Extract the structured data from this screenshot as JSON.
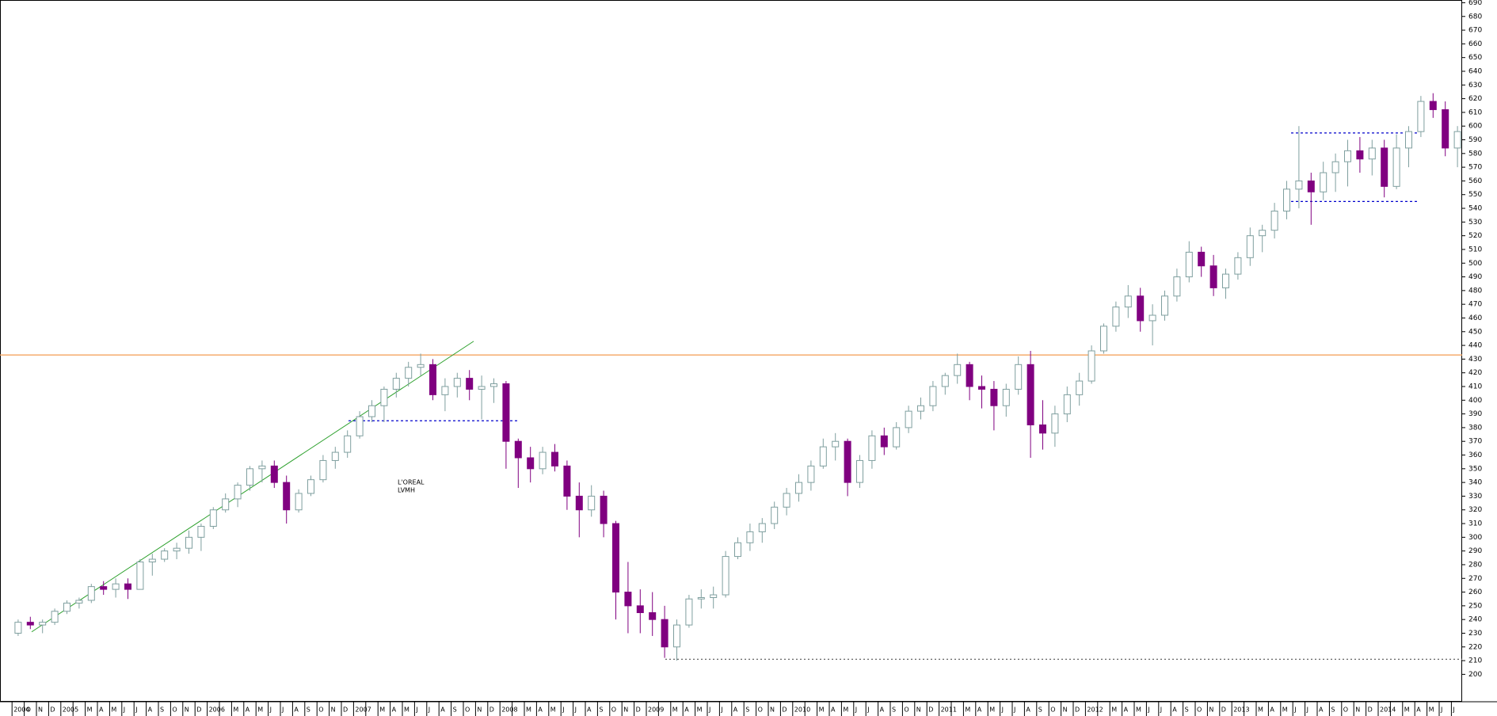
{
  "chart_data": {
    "type": "candlestick",
    "annotations": [
      "L'OREAL",
      "LVMH"
    ],
    "categories": [
      "2004",
      "O",
      "N",
      "D",
      "2005",
      null,
      "M",
      "A",
      "M",
      "J",
      "J",
      "A",
      "S",
      "O",
      "N",
      "D",
      "2006",
      null,
      "M",
      "A",
      "M",
      "J",
      "J",
      "A",
      "S",
      "O",
      "N",
      "D",
      "2007",
      null,
      "M",
      "A",
      "M",
      "J",
      "J",
      "A",
      "S",
      "O",
      "N",
      "D",
      "2008",
      null,
      "M",
      "A",
      "M",
      "J",
      "J",
      "A",
      "S",
      "O",
      "N",
      "D",
      "2009",
      null,
      "M",
      "A",
      "M",
      "J",
      "J",
      "A",
      "S",
      "O",
      "N",
      "D",
      "2010",
      null,
      "M",
      "A",
      "M",
      "J",
      "J",
      "A",
      "S",
      "O",
      "N",
      "D",
      "2011",
      null,
      "M",
      "A",
      "M",
      "J",
      "J",
      "A",
      "S",
      "O",
      "N",
      "D",
      "2012",
      null,
      "M",
      "A",
      "M",
      "J",
      "J",
      "A",
      "S",
      "O",
      "N",
      "D",
      "2013",
      null,
      "M",
      "A",
      "M",
      "J",
      "J",
      "A",
      "S",
      "O",
      "N",
      "D",
      "2014",
      null,
      "M",
      "A",
      "M",
      "J",
      "J"
    ],
    "series": [
      {
        "up_color": "#ffffff",
        "up_edge": "#7f9f9f",
        "down_color": "#800080",
        "ohlc": [
          [
            230,
            240,
            228,
            238
          ],
          [
            238,
            242,
            233,
            236
          ],
          [
            236,
            240,
            230,
            238
          ],
          [
            238,
            248,
            236,
            246
          ],
          [
            246,
            254,
            244,
            252
          ],
          [
            252,
            256,
            248,
            254
          ],
          [
            254,
            266,
            252,
            264
          ],
          [
            264,
            268,
            258,
            262
          ],
          [
            262,
            270,
            256,
            266
          ],
          [
            266,
            270,
            255,
            262
          ],
          [
            262,
            284,
            262,
            282
          ],
          [
            282,
            288,
            272,
            284
          ],
          [
            284,
            292,
            282,
            290
          ],
          [
            290,
            296,
            284,
            292
          ],
          [
            292,
            305,
            288,
            300
          ],
          [
            300,
            310,
            290,
            308
          ],
          [
            308,
            322,
            306,
            320
          ],
          [
            320,
            332,
            318,
            328
          ],
          [
            328,
            340,
            322,
            338
          ],
          [
            338,
            352,
            334,
            350
          ],
          [
            350,
            356,
            340,
            352
          ],
          [
            352,
            356,
            336,
            340
          ],
          [
            340,
            345,
            310,
            320
          ],
          [
            320,
            335,
            318,
            332
          ],
          [
            332,
            345,
            330,
            342
          ],
          [
            342,
            360,
            340,
            356
          ],
          [
            356,
            366,
            350,
            362
          ],
          [
            362,
            378,
            358,
            374
          ],
          [
            374,
            392,
            372,
            388
          ],
          [
            388,
            400,
            384,
            396
          ],
          [
            396,
            410,
            384,
            408
          ],
          [
            408,
            420,
            402,
            416
          ],
          [
            416,
            428,
            410,
            424
          ],
          [
            424,
            434,
            418,
            426
          ],
          [
            426,
            430,
            400,
            404
          ],
          [
            404,
            416,
            392,
            410
          ],
          [
            410,
            420,
            402,
            416
          ],
          [
            416,
            422,
            400,
            408
          ],
          [
            408,
            418,
            386,
            410
          ],
          [
            410,
            416,
            398,
            412
          ],
          [
            412,
            414,
            350,
            370
          ],
          [
            370,
            372,
            336,
            358
          ],
          [
            358,
            366,
            340,
            350
          ],
          [
            350,
            366,
            346,
            362
          ],
          [
            362,
            368,
            348,
            352
          ],
          [
            352,
            356,
            320,
            330
          ],
          [
            330,
            340,
            300,
            320
          ],
          [
            320,
            338,
            315,
            330
          ],
          [
            330,
            334,
            300,
            310
          ],
          [
            310,
            312,
            240,
            260
          ],
          [
            260,
            282,
            230,
            250
          ],
          [
            250,
            262,
            230,
            245
          ],
          [
            245,
            260,
            228,
            240
          ],
          [
            240,
            250,
            212,
            220
          ],
          [
            220,
            240,
            210,
            236
          ],
          [
            236,
            258,
            234,
            255
          ],
          [
            255,
            262,
            248,
            256
          ],
          [
            256,
            264,
            248,
            258
          ],
          [
            258,
            290,
            256,
            286
          ],
          [
            286,
            300,
            284,
            296
          ],
          [
            296,
            310,
            290,
            304
          ],
          [
            304,
            314,
            296,
            310
          ],
          [
            310,
            326,
            306,
            322
          ],
          [
            322,
            336,
            316,
            332
          ],
          [
            332,
            346,
            326,
            340
          ],
          [
            340,
            356,
            334,
            352
          ],
          [
            352,
            372,
            350,
            366
          ],
          [
            366,
            376,
            356,
            370
          ],
          [
            370,
            372,
            330,
            340
          ],
          [
            340,
            360,
            336,
            356
          ],
          [
            356,
            378,
            350,
            374
          ],
          [
            374,
            380,
            360,
            366
          ],
          [
            366,
            384,
            364,
            380
          ],
          [
            380,
            396,
            376,
            392
          ],
          [
            392,
            402,
            386,
            396
          ],
          [
            396,
            414,
            392,
            410
          ],
          [
            410,
            420,
            404,
            418
          ],
          [
            418,
            434,
            412,
            426
          ],
          [
            426,
            428,
            400,
            410
          ],
          [
            410,
            418,
            394,
            408
          ],
          [
            408,
            414,
            378,
            396
          ],
          [
            396,
            412,
            388,
            408
          ],
          [
            408,
            432,
            404,
            426
          ],
          [
            426,
            436,
            358,
            382
          ],
          [
            382,
            400,
            364,
            376
          ],
          [
            376,
            396,
            366,
            390
          ],
          [
            390,
            410,
            384,
            404
          ],
          [
            404,
            420,
            396,
            414
          ],
          [
            414,
            440,
            412,
            436
          ],
          [
            436,
            456,
            434,
            454
          ],
          [
            454,
            472,
            450,
            468
          ],
          [
            468,
            484,
            460,
            476
          ],
          [
            476,
            482,
            450,
            458
          ],
          [
            458,
            470,
            440,
            462
          ],
          [
            462,
            480,
            458,
            476
          ],
          [
            476,
            496,
            472,
            490
          ],
          [
            490,
            516,
            486,
            508
          ],
          [
            508,
            512,
            490,
            498
          ],
          [
            498,
            506,
            476,
            482
          ],
          [
            482,
            496,
            474,
            492
          ],
          [
            492,
            508,
            488,
            504
          ],
          [
            504,
            526,
            498,
            520
          ],
          [
            520,
            528,
            508,
            524
          ],
          [
            524,
            544,
            518,
            538
          ],
          [
            538,
            560,
            532,
            554
          ],
          [
            554,
            600,
            540,
            560
          ],
          [
            560,
            566,
            528,
            552
          ],
          [
            552,
            574,
            546,
            566
          ],
          [
            566,
            580,
            552,
            574
          ],
          [
            574,
            590,
            556,
            582
          ],
          [
            582,
            592,
            566,
            576
          ],
          [
            576,
            590,
            564,
            584
          ],
          [
            584,
            590,
            548,
            556
          ],
          [
            556,
            594,
            554,
            584
          ],
          [
            584,
            600,
            570,
            596
          ],
          [
            596,
            622,
            592,
            618
          ],
          [
            618,
            624,
            606,
            612
          ],
          [
            612,
            618,
            578,
            584
          ],
          [
            584,
            600,
            570,
            596
          ]
        ]
      }
    ],
    "levels": [
      {
        "value": 433,
        "color": "#f4a460",
        "dash": "none"
      },
      {
        "value": 385,
        "color": "#0000cc",
        "dash": "3,3"
      },
      {
        "value": 595,
        "color": "#0000cc",
        "dash": "3,3"
      },
      {
        "value": 545,
        "color": "#0000cc",
        "dash": "3,3"
      },
      {
        "value": 211,
        "color": "#666666",
        "dash": "2,3"
      }
    ],
    "trendline": {
      "values": [
        231,
        443
      ],
      "color": "#2ca02c"
    },
    "ylim": [
      180,
      692
    ],
    "yticks": [
      200,
      210,
      220,
      230,
      240,
      250,
      260,
      270,
      280,
      290,
      300,
      310,
      320,
      330,
      340,
      350,
      360,
      370,
      380,
      390,
      400,
      410,
      420,
      430,
      440,
      450,
      460,
      470,
      480,
      490,
      500,
      510,
      520,
      530,
      540,
      550,
      560,
      570,
      580,
      590,
      600,
      610,
      620,
      630,
      640,
      650,
      660,
      670,
      680,
      690
    ]
  }
}
